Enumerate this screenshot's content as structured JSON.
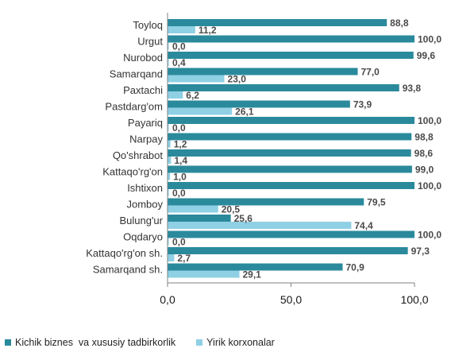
{
  "chart_data": {
    "type": "bar",
    "orientation": "horizontal",
    "categories": [
      "Toyloq",
      "Urgut",
      "Nurobod",
      "Samarqand",
      "Paxtachi",
      "Pastdarg'om",
      "Payariq",
      "Narpay",
      "Qo'shrabot",
      "Kattaqo'rg'on",
      "Ishtixon",
      "Jomboy",
      "Bulung'ur",
      "Oqdaryo",
      "Kattaqo'rg'on sh.",
      "Samarqand sh."
    ],
    "series": [
      {
        "name": "Kichik biznes  va xususiy tadbirkorlik",
        "values": [
          88.8,
          100.0,
          99.6,
          77.0,
          93.8,
          73.9,
          100.0,
          98.8,
          98.6,
          99.0,
          100.0,
          79.5,
          25.6,
          100.0,
          97.3,
          70.9
        ],
        "labels": [
          "88,8",
          "100,0",
          "99,6",
          "77,0",
          "93,8",
          "73,9",
          "100,0",
          "98,8",
          "98,6",
          "99,0",
          "100,0",
          "79,5",
          "25,6",
          "100,0",
          "97,3",
          "70,9"
        ]
      },
      {
        "name": "Yirik korxonalar",
        "values": [
          11.2,
          0.0,
          0.4,
          23.0,
          6.2,
          26.1,
          0.0,
          1.2,
          1.4,
          1.0,
          0.0,
          20.5,
          74.4,
          0.0,
          2.7,
          29.1
        ],
        "labels": [
          "11,2",
          "0,0",
          "0,4",
          "23,0",
          "6,2",
          "26,1",
          "0,0",
          "1,2",
          "1,4",
          "1,0",
          "0,0",
          "20,5",
          "74,4",
          "0,0",
          "2,7",
          "29,1"
        ]
      }
    ],
    "xlim": [
      0,
      100
    ],
    "ticks": [
      0,
      50,
      100
    ],
    "tick_labels": [
      "0,0",
      "50,0",
      "100,0"
    ],
    "grid": false,
    "legend_position": "bottom-left",
    "colors": {
      "series1": "#2a8a9c",
      "series2": "#8fd0e4",
      "axis": "#808080"
    }
  }
}
